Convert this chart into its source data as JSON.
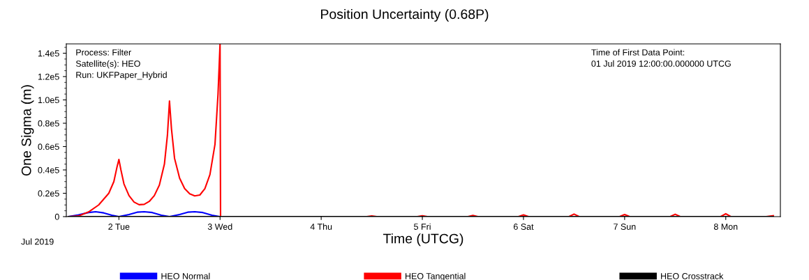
{
  "chart_data": {
    "type": "line",
    "title": "Position Uncertainty (0.68P)",
    "xlabel": "Time (UTCG)",
    "ylabel": "One Sigma (m)",
    "annotations": [
      "Process: Filter\nSatellite(s): HEO\nRun: UKFPaper_Hybrid",
      "Time of First Data Point:\n01 Jul 2019 12:00:00.000000 UTCG",
      "Jul 2019"
    ],
    "xlim": [
      1.48,
      8.54
    ],
    "xticks": [
      {
        "value": 2,
        "label": "2 Tue"
      },
      {
        "value": 3,
        "label": "3 Wed"
      },
      {
        "value": 4,
        "label": "4 Thu"
      },
      {
        "value": 5,
        "label": "5 Fri"
      },
      {
        "value": 6,
        "label": "6 Sat"
      },
      {
        "value": 7,
        "label": "7 Sun"
      },
      {
        "value": 8,
        "label": "8 Mon"
      }
    ],
    "ylim": [
      0,
      148000
    ],
    "yticks": [
      {
        "value": 0,
        "label": "0"
      },
      {
        "value": 20000,
        "label": "0.2e5"
      },
      {
        "value": 40000,
        "label": "0.4e5"
      },
      {
        "value": 60000,
        "label": "0.6e5"
      },
      {
        "value": 80000,
        "label": "0.8e5"
      },
      {
        "value": 100000,
        "label": "1.0e5"
      },
      {
        "value": 120000,
        "label": "1.2e5"
      },
      {
        "value": 140000,
        "label": "1.4e5"
      }
    ],
    "grid": false,
    "legend": "bottom",
    "marker": "none",
    "line_style": "solid",
    "series": [
      {
        "name": "HEO Normal",
        "color": "#0000ff",
        "x": [
          1.5,
          1.6,
          1.7,
          1.77,
          1.85,
          1.93,
          2.0,
          2.1,
          2.18,
          2.25,
          2.33,
          2.42,
          2.5,
          2.6,
          2.68,
          2.75,
          2.83,
          2.92,
          3.0
        ],
        "values": [
          0,
          1500,
          3500,
          4200,
          3200,
          1200,
          0,
          1800,
          3800,
          4200,
          3500,
          1200,
          0,
          1800,
          3800,
          4200,
          3500,
          1200,
          0
        ]
      },
      {
        "name": "HEO Tangential",
        "color": "#ff0000",
        "x": [
          1.5,
          1.6,
          1.7,
          1.8,
          1.9,
          1.95,
          1.98,
          2.0,
          2.02,
          2.05,
          2.1,
          2.15,
          2.2,
          2.25,
          2.3,
          2.35,
          2.4,
          2.45,
          2.48,
          2.5,
          2.52,
          2.55,
          2.6,
          2.65,
          2.7,
          2.75,
          2.8,
          2.85,
          2.9,
          2.95,
          2.98,
          3.0,
          3.005,
          4.45,
          4.5,
          4.55,
          4.95,
          5.0,
          5.05,
          5.45,
          5.5,
          5.55,
          5.95,
          6.0,
          6.05,
          6.45,
          6.5,
          6.55,
          6.95,
          7.0,
          7.05,
          7.45,
          7.5,
          7.55,
          7.95,
          8.0,
          8.05,
          8.4,
          8.47
        ],
        "values": [
          0,
          500,
          4000,
          10000,
          20000,
          30000,
          42000,
          49000,
          40000,
          28000,
          18000,
          12500,
          10200,
          10500,
          13000,
          18000,
          27000,
          45000,
          70000,
          99000,
          75000,
          50000,
          33000,
          24000,
          19500,
          17800,
          18500,
          24000,
          36000,
          62000,
          105000,
          148000,
          0,
          0,
          600,
          0,
          0,
          800,
          0,
          0,
          1000,
          0,
          0,
          1500,
          0,
          0,
          2200,
          0,
          0,
          1800,
          0,
          0,
          2000,
          0,
          0,
          2500,
          0,
          0,
          800
        ]
      },
      {
        "name": "HEO Crosstrack",
        "color": "#000000",
        "x": [
          1.5,
          8.47
        ],
        "values": [
          0,
          0
        ]
      }
    ]
  }
}
